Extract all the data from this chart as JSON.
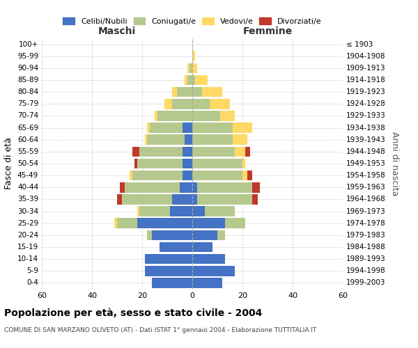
{
  "age_groups": [
    "0-4",
    "5-9",
    "10-14",
    "15-19",
    "20-24",
    "25-29",
    "30-34",
    "35-39",
    "40-44",
    "45-49",
    "50-54",
    "55-59",
    "60-64",
    "65-69",
    "70-74",
    "75-79",
    "80-84",
    "85-89",
    "90-94",
    "95-99",
    "100+"
  ],
  "birth_years": [
    "1999-2003",
    "1994-1998",
    "1989-1993",
    "1984-1988",
    "1979-1983",
    "1974-1978",
    "1969-1973",
    "1964-1968",
    "1959-1963",
    "1954-1958",
    "1949-1953",
    "1944-1948",
    "1939-1943",
    "1934-1938",
    "1929-1933",
    "1924-1928",
    "1919-1923",
    "1914-1918",
    "1909-1913",
    "1904-1908",
    "≤ 1903"
  ],
  "maschi": {
    "celibi": [
      16,
      19,
      19,
      13,
      16,
      22,
      9,
      8,
      5,
      4,
      4,
      4,
      3,
      4,
      0,
      0,
      0,
      0,
      0,
      0,
      0
    ],
    "coniugati": [
      0,
      0,
      0,
      0,
      2,
      8,
      12,
      20,
      22,
      20,
      18,
      17,
      15,
      13,
      14,
      8,
      6,
      2,
      1,
      0,
      0
    ],
    "vedovi": [
      0,
      0,
      0,
      0,
      0,
      1,
      1,
      0,
      0,
      1,
      0,
      0,
      1,
      1,
      1,
      3,
      2,
      1,
      1,
      0,
      0
    ],
    "divorziati": [
      0,
      0,
      0,
      0,
      0,
      0,
      0,
      2,
      2,
      0,
      1,
      3,
      0,
      0,
      0,
      0,
      0,
      0,
      0,
      0,
      0
    ]
  },
  "femmine": {
    "nubili": [
      12,
      17,
      13,
      8,
      10,
      13,
      5,
      2,
      2,
      0,
      0,
      0,
      0,
      0,
      0,
      0,
      0,
      0,
      0,
      0,
      0
    ],
    "coniugate": [
      0,
      0,
      0,
      0,
      3,
      8,
      12,
      22,
      22,
      20,
      20,
      17,
      16,
      16,
      11,
      7,
      4,
      1,
      0,
      0,
      0
    ],
    "vedove": [
      0,
      0,
      0,
      0,
      0,
      0,
      0,
      0,
      0,
      2,
      1,
      4,
      6,
      8,
      6,
      8,
      8,
      5,
      2,
      1,
      0
    ],
    "divorziate": [
      0,
      0,
      0,
      0,
      0,
      0,
      0,
      2,
      3,
      2,
      0,
      2,
      0,
      0,
      0,
      0,
      0,
      0,
      0,
      0,
      0
    ]
  },
  "colors": {
    "celibi_nubili": "#4472c4",
    "coniugati": "#b5c98e",
    "vedovi": "#ffd966",
    "divorziati": "#c0392b"
  },
  "xlim": 60,
  "xtick_step": 20,
  "title": "Popolazione per età, sesso e stato civile - 2004",
  "subtitle": "COMUNE DI SAN MARZANO OLIVETO (AT) - Dati ISTAT 1° gennaio 2004 - Elaborazione TUTTITALIA.IT",
  "ylabel_left": "Fasce di età",
  "ylabel_right": "Anni di nascita",
  "legend_labels": [
    "Celibi/Nubili",
    "Coniugati/e",
    "Vedovi/e",
    "Divorziati/e"
  ],
  "grid_color": "#cccccc"
}
